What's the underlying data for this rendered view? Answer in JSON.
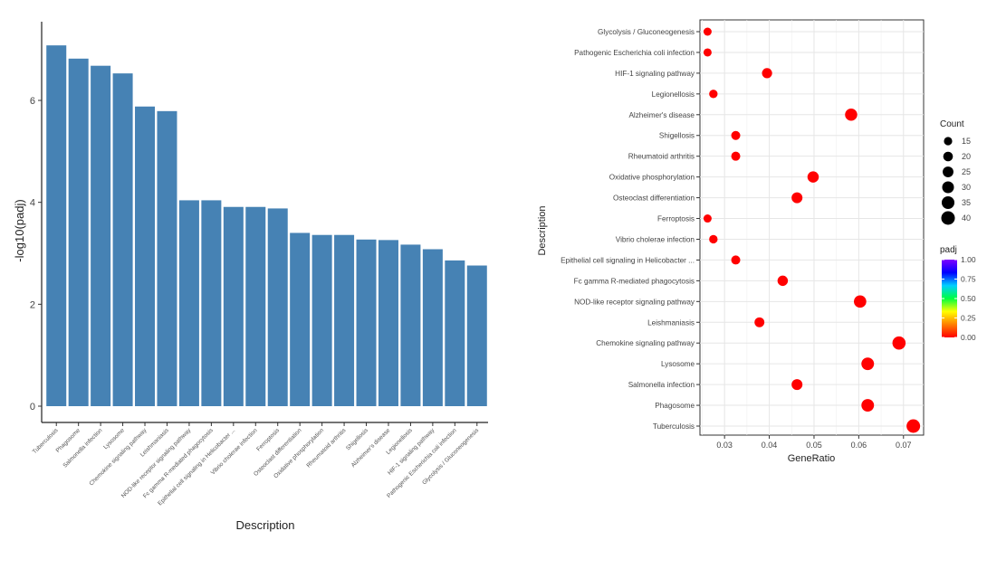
{
  "chart_data": [
    {
      "type": "bar",
      "xlabel": "Description",
      "ylabel": "-log10(padj)",
      "ylim": [
        0,
        7.4
      ],
      "yticks": [
        0,
        2,
        4,
        6
      ],
      "bar_color": "#4682B4",
      "grid": false,
      "categories": [
        "Tuberculosis",
        "Phagosome",
        "Salmonella infection",
        "Lysosome",
        "Chemokine signaling pathway",
        "Leishmaniasis",
        "NOD-like receptor signaling pathway",
        "Fc gamma R-mediated phagocytosis",
        "Epithelial cell signaling in Helicobacter ...",
        "Vibrio cholerae infection",
        "Ferroptosis",
        "Osteoclast differentiation",
        "Oxidative phosphorylation",
        "Rheumatoid arthritis",
        "Shigellosis",
        "Alzheimer's disease",
        "Legionellosis",
        "HIF-1 signaling pathway",
        "Pathogenic Escherichia coli infection",
        "Glycolysis / Gluconeogenesis"
      ],
      "values": [
        7.08,
        6.82,
        6.68,
        6.53,
        5.88,
        5.79,
        4.04,
        4.04,
        3.91,
        3.91,
        3.88,
        3.4,
        3.36,
        3.36,
        3.27,
        3.26,
        3.17,
        3.08,
        2.86,
        2.76
      ]
    },
    {
      "type": "scatter",
      "xlabel": "GeneRatio",
      "ylabel": "Description",
      "xlim": [
        0.0245,
        0.0745
      ],
      "xticks": [
        0.03,
        0.04,
        0.05,
        0.06,
        0.07
      ],
      "xtick_labels": [
        "0.03",
        "0.04",
        "0.05",
        "0.06",
        "0.07"
      ],
      "grid": true,
      "point_color": "#FF0000",
      "categories": [
        "Glycolysis / Gluconeogenesis",
        "Pathogenic Escherichia coli infection",
        "HIF-1 signaling pathway",
        "Legionellosis",
        "Alzheimer's disease",
        "Shigellosis",
        "Rheumatoid arthritis",
        "Oxidative phosphorylation",
        "Osteoclast differentiation",
        "Ferroptosis",
        "Vibrio cholerae infection",
        "Epithelial cell signaling in Helicobacter ...",
        "Fc gamma R-mediated phagocytosis",
        "NOD-like receptor signaling pathway",
        "Leishmaniasis",
        "Chemokine signaling pathway",
        "Lysosome",
        "Salmonella infection",
        "Phagosome",
        "Tuberculosis"
      ],
      "gene_ratio": [
        0.0262,
        0.0262,
        0.0395,
        0.0275,
        0.0583,
        0.0325,
        0.0325,
        0.0498,
        0.0462,
        0.0262,
        0.0275,
        0.0325,
        0.043,
        0.0603,
        0.0378,
        0.069,
        0.062,
        0.0462,
        0.062,
        0.0722
      ],
      "count": [
        13,
        13,
        20,
        14,
        29,
        16,
        16,
        25,
        23,
        13,
        14,
        16,
        21,
        30,
        19,
        34,
        31,
        23,
        31,
        36
      ],
      "padj": [
        0.002,
        0.001,
        0.001,
        0.001,
        0.001,
        0.001,
        0.0004,
        0.0004,
        0.0004,
        0.0001,
        0.0001,
        0.0001,
        0.0001,
        0.0001,
        0.0001,
        0.0001,
        0.0001,
        0.0001,
        0.0001,
        0.0001
      ],
      "legend_size": {
        "title": "Count",
        "labels": [
          "15",
          "20",
          "25",
          "30",
          "35",
          "40"
        ],
        "values": [
          15,
          20,
          25,
          30,
          35,
          40
        ],
        "placement": "right"
      },
      "legend_color": {
        "title": "padj",
        "labels": [
          "1.00",
          "0.75",
          "0.50",
          "0.25",
          "0.00"
        ],
        "values": [
          1.0,
          0.75,
          0.5,
          0.25,
          0.0
        ],
        "colors": [
          "#7F00FF",
          "#0000FF",
          "#00CFFF",
          "#00FF40",
          "#FFFF00",
          "#FF8000",
          "#FF0000"
        ],
        "placement": "right"
      }
    }
  ]
}
